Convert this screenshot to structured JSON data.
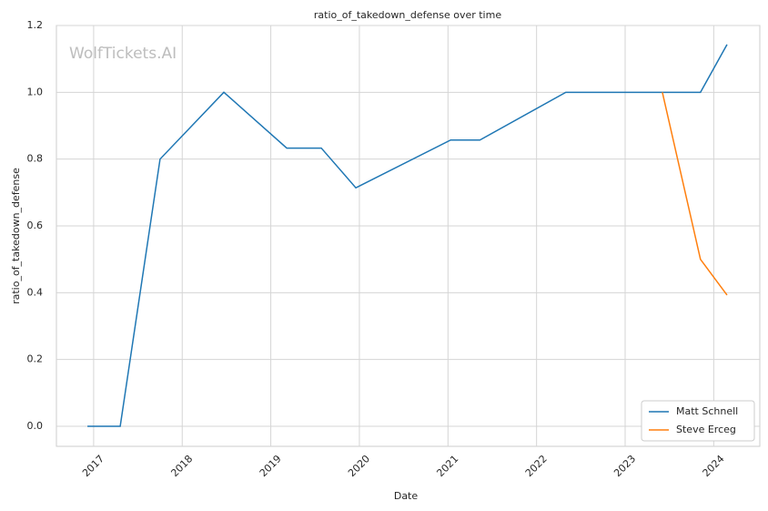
{
  "chart_data": {
    "type": "line",
    "title": "ratio_of_takedown_defense over time",
    "xlabel": "Date",
    "ylabel": "ratio_of_takedown_defense",
    "watermark": "WolfTickets.AI",
    "xlim": [
      2016.58,
      2024.52
    ],
    "xticks": [
      2017,
      2018,
      2019,
      2020,
      2021,
      2022,
      2023,
      2024
    ],
    "ylim": [
      -0.06,
      1.2
    ],
    "yticks": [
      {
        "value": 0,
        "label": "0.0"
      },
      0.2,
      0.4,
      0.6,
      0.8,
      {
        "value": 1,
        "label": "1.0"
      },
      1.2
    ],
    "grid": true,
    "legend": "lower right",
    "series": [
      {
        "name": "Matt Schnell",
        "color": "#1f77b4",
        "x": [
          2016.93,
          2017.3,
          2017.75,
          2018.47,
          2019.18,
          2019.57,
          2019.96,
          2021.03,
          2021.36,
          2022.33,
          2023.42,
          2023.85,
          2024.15
        ],
        "values": [
          0,
          0,
          0.8,
          1.0,
          0.833,
          0.833,
          0.714,
          0.857,
          0.857,
          1.0,
          1.0,
          1.0,
          1.143
        ]
      },
      {
        "name": "Steve Erceg",
        "color": "#ff7f0e",
        "x": [
          2023.42,
          2023.85,
          2024.15
        ],
        "values": [
          1.0,
          0.5,
          0.393
        ]
      }
    ]
  }
}
